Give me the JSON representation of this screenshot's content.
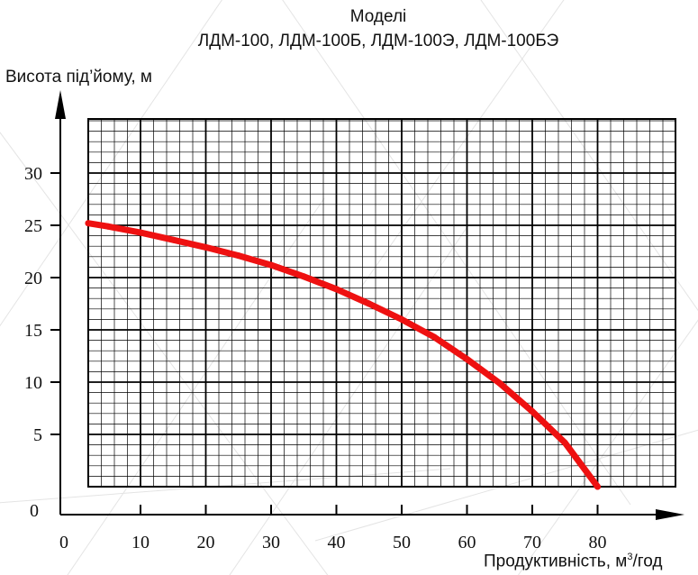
{
  "chart_data": {
    "type": "line",
    "title_line1": "Моделі",
    "title_line2": "ЛДМ-100, ЛДМ-100Б, ЛДМ-100Э, ЛДМ-100БЭ",
    "ylabel": "Висота під’йому, м",
    "xlabel_prefix": "Продуктивність, м",
    "xlabel_sup": "3",
    "xlabel_suffix": "/год",
    "x_origin_label": "0",
    "y_origin_label": "0",
    "x_ticks": [
      10,
      20,
      30,
      40,
      50,
      60,
      70,
      80
    ],
    "y_ticks": [
      5,
      10,
      15,
      20,
      25,
      30
    ],
    "xlim": [
      0,
      85
    ],
    "ylim": [
      0,
      35
    ],
    "grid": true,
    "series": [
      {
        "color": "#ee1111",
        "x": [
          2,
          5,
          10,
          15,
          20,
          25,
          30,
          35,
          40,
          45,
          50,
          55,
          60,
          65,
          70,
          75,
          80
        ],
        "y": [
          25.2,
          24.9,
          24.3,
          23.6,
          22.9,
          22.1,
          21.2,
          20.1,
          18.9,
          17.5,
          16.0,
          14.3,
          12.2,
          9.9,
          7.2,
          4.2,
          0
        ]
      }
    ]
  }
}
